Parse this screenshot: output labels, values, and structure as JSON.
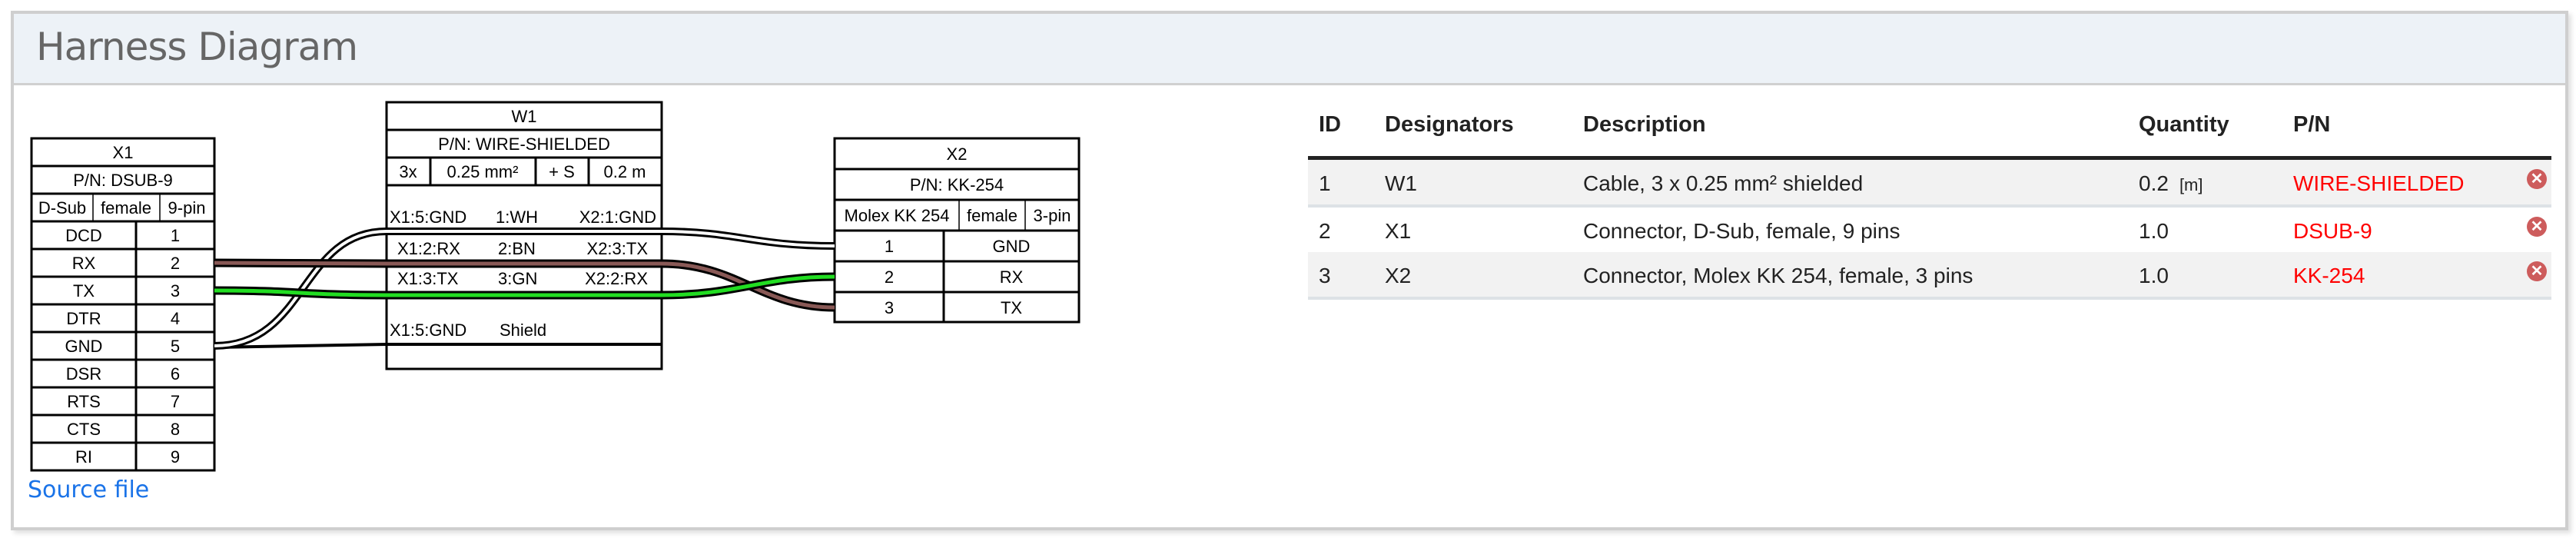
{
  "card": {
    "title": "Harness Diagram",
    "source_link": "Source file"
  },
  "diagram": {
    "x1": {
      "name": "X1",
      "pn": "P/N: DSUB-9",
      "type": "D-Sub",
      "gender": "female",
      "pincount": "9-pin",
      "pins": [
        {
          "label": "DCD",
          "num": "1"
        },
        {
          "label": "RX",
          "num": "2"
        },
        {
          "label": "TX",
          "num": "3"
        },
        {
          "label": "DTR",
          "num": "4"
        },
        {
          "label": "GND",
          "num": "5"
        },
        {
          "label": "DSR",
          "num": "6"
        },
        {
          "label": "RTS",
          "num": "7"
        },
        {
          "label": "CTS",
          "num": "8"
        },
        {
          "label": "RI",
          "num": "9"
        }
      ]
    },
    "w1": {
      "name": "W1",
      "pn": "P/N: WIRE-SHIELDED",
      "count": "3x",
      "gauge": "0.25 mm²",
      "shield": "+ S",
      "length": "0.2 m",
      "wires": [
        {
          "from": "X1:5:GND",
          "wire": "1:WH",
          "to": "X2:1:GND",
          "color": "#ffffff"
        },
        {
          "from": "X1:2:RX",
          "wire": "2:BN",
          "to": "X2:3:TX",
          "color": "#895956"
        },
        {
          "from": "X1:3:TX",
          "wire": "3:GN",
          "to": "X2:2:RX",
          "color": "#22dd22"
        }
      ],
      "shield_row": {
        "from": "X1:5:GND",
        "wire": "Shield"
      }
    },
    "x2": {
      "name": "X2",
      "pn": "P/N: KK-254",
      "type": "Molex KK 254",
      "gender": "female",
      "pincount": "3-pin",
      "pins": [
        {
          "num": "1",
          "label": "GND"
        },
        {
          "num": "2",
          "label": "RX"
        },
        {
          "num": "3",
          "label": "TX"
        }
      ]
    }
  },
  "bom": {
    "headers": {
      "id": "ID",
      "designators": "Designators",
      "description": "Description",
      "quantity": "Quantity",
      "pn": "P/N"
    },
    "rows": [
      {
        "id": "1",
        "designators": "W1",
        "description": "Cable, 3 x 0.25 mm² shielded",
        "quantity": "0.2",
        "unit": "[m]",
        "pn": "WIRE-SHIELDED"
      },
      {
        "id": "2",
        "designators": "X1",
        "description": "Connector, D-Sub, female, 9 pins",
        "quantity": "1.0",
        "unit": "",
        "pn": "DSUB-9"
      },
      {
        "id": "3",
        "designators": "X2",
        "description": "Connector, Molex KK 254, female, 3 pins",
        "quantity": "1.0",
        "unit": "",
        "pn": "KK-254"
      }
    ],
    "remove_icon": "remove-circle-icon",
    "pn_color": "#ff0000",
    "icon_color": "#cd5c5c"
  }
}
